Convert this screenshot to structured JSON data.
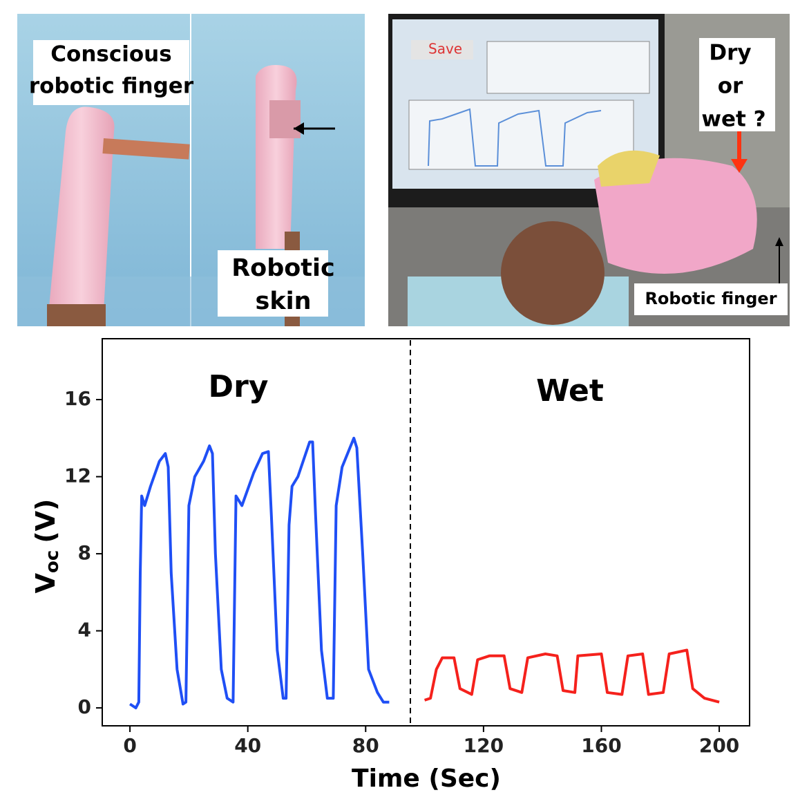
{
  "photos": {
    "finger_label": [
      "Conscious",
      "robotic finger"
    ],
    "skin_label": [
      "Robotic",
      "skin"
    ],
    "question_label": [
      "Dry",
      "or",
      "wet ?"
    ],
    "finger_pointer_label": "Robotic finger"
  },
  "chart_data": {
    "type": "line",
    "annotations": [
      "Dry",
      "Wet"
    ],
    "xlabel": "Time (Sec)",
    "ylabel": [
      "V",
      "oc",
      "(V)"
    ],
    "xlim": [
      -9.4,
      210.3
    ],
    "ylim": [
      -0.93,
      19.16
    ],
    "xticks": [
      0,
      40,
      80,
      120,
      160,
      200
    ],
    "yticks": [
      0,
      4,
      8,
      12,
      16
    ],
    "series": [
      {
        "color": "#1f4ff5",
        "x": [
          0,
          2,
          3,
          3.5,
          4,
          5,
          7,
          10,
          12,
          13,
          14,
          16,
          18,
          19,
          20,
          22,
          25,
          27,
          28,
          29,
          31,
          33,
          35,
          36,
          38,
          42,
          45,
          47,
          48,
          50,
          52,
          53,
          54,
          55,
          57,
          61,
          62,
          63,
          65,
          67,
          69,
          70,
          72,
          76,
          77,
          79,
          81,
          84,
          86,
          88
        ],
        "values": [
          0.2,
          0,
          0.3,
          7,
          11,
          10.5,
          11.5,
          12.8,
          13.2,
          12.5,
          7,
          2,
          0.2,
          0.3,
          10.5,
          12,
          12.8,
          13.6,
          13.2,
          8,
          2,
          0.5,
          0.3,
          11,
          10.5,
          12.2,
          13.2,
          13.3,
          10,
          3,
          0.5,
          0.5,
          9.5,
          11.5,
          12,
          13.8,
          13.8,
          10,
          3,
          0.5,
          0.5,
          10.5,
          12.5,
          14,
          13.5,
          8,
          2,
          0.8,
          0.3,
          0.3
        ]
      },
      {
        "color": "#f5211c",
        "x": [
          100,
          102,
          104,
          106,
          110,
          112,
          116,
          118,
          122,
          127,
          129,
          133,
          135,
          141,
          145,
          147,
          151,
          152,
          160,
          162,
          167,
          169,
          174,
          176,
          181,
          183,
          189,
          191,
          195,
          200
        ],
        "values": [
          0.4,
          0.5,
          2,
          2.6,
          2.6,
          1,
          0.7,
          2.5,
          2.7,
          2.7,
          1,
          0.8,
          2.6,
          2.8,
          2.7,
          0.9,
          0.8,
          2.7,
          2.8,
          0.8,
          0.7,
          2.7,
          2.8,
          0.7,
          0.8,
          2.8,
          3.0,
          1,
          0.5,
          0.3
        ]
      }
    ]
  }
}
